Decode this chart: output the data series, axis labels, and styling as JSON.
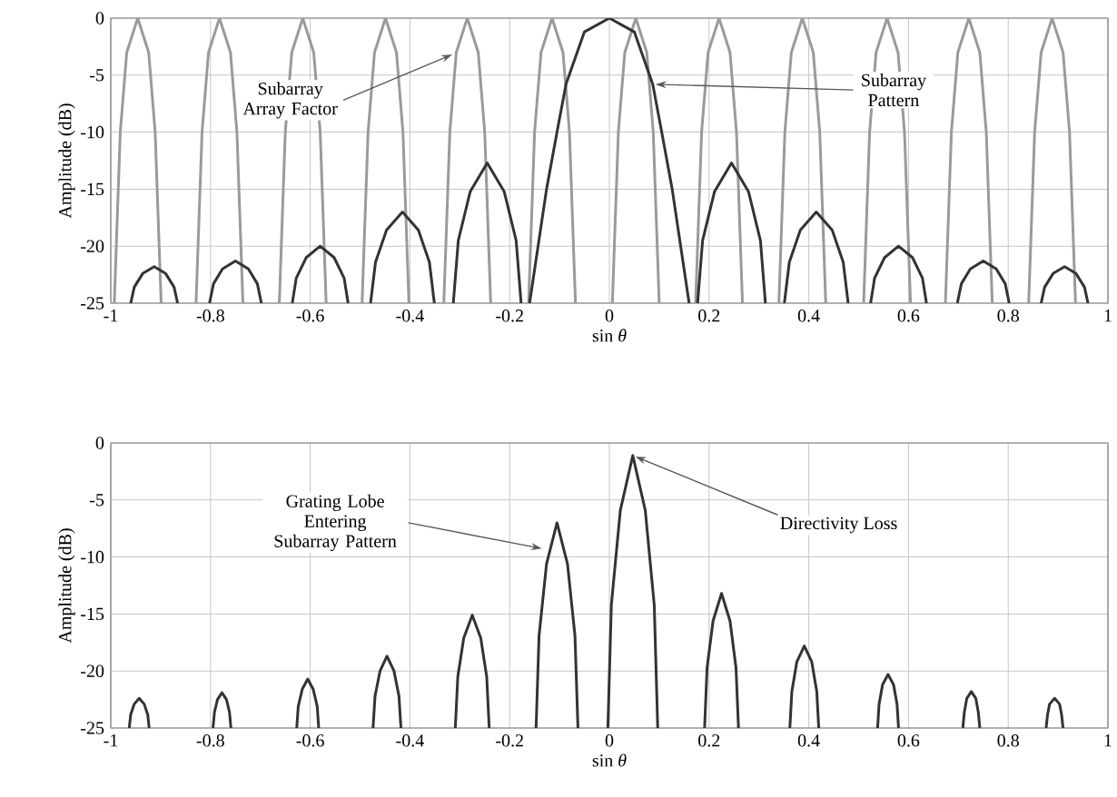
{
  "chart_data": [
    {
      "type": "line",
      "xlabel": "sin *θ*",
      "ylabel": "Amplitude (dB)",
      "xlim": [
        -1,
        1
      ],
      "ylim": [
        -25,
        0
      ],
      "xticks": [
        -1,
        -0.8,
        -0.6,
        -0.4,
        -0.2,
        0,
        0.2,
        0.4,
        0.6,
        0.8,
        1
      ],
      "yticks": [
        -25,
        -20,
        -15,
        -10,
        -5,
        0
      ],
      "grid": true,
      "marker": "none",
      "line_style": "solid",
      "series": [
        {
          "color": "#9a9a9a",
          "x": [
            -0.993,
            -0.981,
            -0.968,
            -0.946,
            -0.924,
            -0.911,
            -0.899,
            null,
            -0.829,
            -0.817,
            -0.804,
            -0.782,
            -0.76,
            -0.747,
            -0.735,
            null,
            -0.662,
            -0.65,
            -0.637,
            -0.615,
            -0.593,
            -0.58,
            -0.568,
            null,
            -0.496,
            -0.484,
            -0.471,
            -0.449,
            -0.427,
            -0.414,
            -0.402,
            null,
            -0.332,
            -0.32,
            -0.307,
            -0.285,
            -0.263,
            -0.25,
            -0.238,
            null,
            -0.162,
            -0.15,
            -0.137,
            -0.115,
            -0.093,
            -0.08,
            -0.068,
            null,
            0.006,
            0.018,
            0.031,
            0.053,
            0.075,
            0.088,
            0.1,
            null,
            0.173,
            0.185,
            0.198,
            0.22,
            0.242,
            0.255,
            0.267,
            null,
            0.34,
            0.352,
            0.365,
            0.387,
            0.409,
            0.422,
            0.434,
            null,
            0.51,
            0.522,
            0.535,
            0.557,
            0.579,
            0.592,
            0.604,
            null,
            0.674,
            0.686,
            0.699,
            0.721,
            0.743,
            0.756,
            0.768,
            null,
            0.841,
            0.853,
            0.866,
            0.888,
            0.91,
            0.923,
            0.935
          ],
          "values": [
            -25,
            -10,
            -3,
            0,
            -3,
            -10,
            -25,
            null,
            -25,
            -10,
            -3,
            0,
            -3,
            -10,
            -25,
            null,
            -25,
            -10,
            -3,
            0,
            -3,
            -10,
            -25,
            null,
            -25,
            -10,
            -3,
            0,
            -3,
            -10,
            -25,
            null,
            -25,
            -10,
            -3,
            0,
            -3,
            -10,
            -25,
            null,
            -25,
            -10,
            -3,
            0,
            -3,
            -10,
            -25,
            null,
            -25,
            -10,
            -3,
            0,
            -3,
            -10,
            -25,
            null,
            -25,
            -10,
            -3,
            0,
            -3,
            -10,
            -25,
            null,
            -25,
            -10,
            -3,
            0,
            -3,
            -10,
            -25,
            null,
            -25,
            -10,
            -3,
            0,
            -3,
            -10,
            -25,
            null,
            -25,
            -10,
            -3,
            0,
            -3,
            -10,
            -25,
            null,
            -25,
            -10,
            -3,
            0,
            -3,
            -10,
            -25
          ]
        },
        {
          "color": "#333333",
          "x": [
            -0.96,
            -0.953,
            -0.936,
            -0.913,
            -0.89,
            -0.873,
            -0.866,
            null,
            -0.802,
            -0.794,
            -0.776,
            -0.75,
            -0.724,
            -0.706,
            -0.698,
            null,
            -0.636,
            -0.628,
            -0.608,
            -0.58,
            -0.552,
            -0.532,
            -0.524,
            null,
            -0.479,
            -0.469,
            -0.447,
            -0.415,
            -0.383,
            -0.361,
            -0.351,
            null,
            -0.313,
            -0.303,
            -0.279,
            -0.245,
            -0.211,
            -0.187,
            -0.177,
            null,
            -0.16,
            -0.126,
            -0.105,
            -0.087,
            -0.05,
            0,
            0.05,
            0.087,
            0.105,
            0.126,
            0.16,
            null,
            0.177,
            0.187,
            0.211,
            0.245,
            0.279,
            0.303,
            0.313,
            null,
            0.351,
            0.361,
            0.383,
            0.415,
            0.447,
            0.469,
            0.479,
            null,
            0.524,
            0.532,
            0.552,
            0.58,
            0.608,
            0.628,
            0.636,
            null,
            0.698,
            0.706,
            0.724,
            0.75,
            0.776,
            0.794,
            0.802,
            null,
            0.866,
            0.873,
            0.89,
            0.913,
            0.936,
            0.953,
            0.96
          ],
          "values": [
            -25,
            -23.6,
            -22.4,
            -21.8,
            -22.4,
            -23.6,
            -25,
            null,
            -25,
            -23.3,
            -22,
            -21.3,
            -22,
            -23.3,
            -25,
            null,
            -25,
            -22.8,
            -21,
            -20,
            -21,
            -22.8,
            -25,
            null,
            -25,
            -21.4,
            -18.6,
            -17,
            -18.6,
            -21.4,
            -25,
            null,
            -25,
            -19.5,
            -15.2,
            -12.7,
            -15.2,
            -19.5,
            -25,
            null,
            -25,
            -15,
            -10,
            -5.8,
            -1.2,
            0,
            -1.2,
            -5.8,
            -10,
            -15,
            -25,
            null,
            -25,
            -19.5,
            -15.2,
            -12.7,
            -15.2,
            -19.5,
            -25,
            null,
            -25,
            -21.4,
            -18.6,
            -17,
            -18.6,
            -21.4,
            -25,
            null,
            -25,
            -22.8,
            -21,
            -20,
            -21,
            -22.8,
            -25,
            null,
            -25,
            -23.3,
            -22,
            -21.3,
            -22,
            -23.3,
            -25,
            null,
            -25,
            -23.6,
            -22.4,
            -21.8,
            -22.4,
            -23.6,
            -25
          ]
        }
      ],
      "annotations": [
        {
          "text": "Subarray Array Factor",
          "x": -0.31,
          "y": -3.1
        },
        {
          "text": "Subarray Pattern",
          "x": 0.087,
          "y": -5.8
        }
      ]
    },
    {
      "type": "line",
      "xlabel": "sin *θ*",
      "ylabel": "Amplitude (dB)",
      "xlim": [
        -1,
        1
      ],
      "ylim": [
        -25,
        0
      ],
      "xticks": [
        -1,
        -0.8,
        -0.6,
        -0.4,
        -0.2,
        0,
        0.2,
        0.4,
        0.6,
        0.8,
        1
      ],
      "yticks": [
        -25,
        -20,
        -15,
        -10,
        -5,
        0
      ],
      "grid": true,
      "marker": "none",
      "line_style": "solid",
      "series": [
        {
          "color": "#333333",
          "x": [
            -0.963,
            -0.96,
            -0.953,
            -0.943,
            -0.933,
            -0.926,
            -0.923,
            null,
            -0.795,
            -0.792,
            -0.786,
            -0.777,
            -0.768,
            -0.762,
            -0.759,
            null,
            -0.627,
            -0.624,
            -0.616,
            -0.605,
            -0.594,
            -0.586,
            -0.583,
            null,
            -0.474,
            -0.47,
            -0.46,
            -0.446,
            -0.432,
            -0.422,
            -0.418,
            null,
            -0.309,
            -0.304,
            -0.292,
            -0.275,
            -0.258,
            -0.246,
            -0.241,
            null,
            -0.147,
            -0.141,
            -0.126,
            -0.105,
            -0.084,
            -0.069,
            -0.063,
            null,
            -0.003,
            0.004,
            0.022,
            0.047,
            0.072,
            0.09,
            0.097,
            null,
            0.191,
            0.196,
            0.208,
            0.225,
            0.242,
            0.254,
            0.259,
            null,
            0.362,
            0.366,
            0.376,
            0.391,
            0.406,
            0.416,
            0.42,
            null,
            0.538,
            0.541,
            0.548,
            0.559,
            0.57,
            0.577,
            0.58,
            null,
            0.709,
            0.712,
            0.717,
            0.726,
            0.735,
            0.74,
            0.743,
            null,
            0.876,
            0.879,
            0.883,
            0.893,
            0.903,
            0.907,
            0.91
          ],
          "values": [
            -25,
            -23.8,
            -22.9,
            -22.4,
            -22.9,
            -23.8,
            -25,
            null,
            -25,
            -23.6,
            -22.5,
            -21.9,
            -22.5,
            -23.6,
            -25,
            null,
            -25,
            -23.1,
            -21.6,
            -20.7,
            -21.6,
            -23.1,
            -25,
            null,
            -25,
            -22.2,
            -20,
            -18.7,
            -20,
            -22.2,
            -25,
            null,
            -25,
            -20.5,
            -17.1,
            -15.1,
            -17.1,
            -20.5,
            -25,
            null,
            -25,
            -16.9,
            -10.6,
            -7,
            -10.6,
            -16.9,
            -25,
            null,
            -25,
            -14.2,
            -5.9,
            -1.1,
            -5.9,
            -14.2,
            -25,
            null,
            -25,
            -19.7,
            -15.6,
            -13.2,
            -15.6,
            -19.7,
            -25,
            null,
            -25,
            -21.8,
            -19.2,
            -17.8,
            -19.2,
            -21.8,
            -25,
            null,
            -25,
            -22.9,
            -21.2,
            -20.3,
            -21.2,
            -22.9,
            -25,
            null,
            -25,
            -23.6,
            -22.4,
            -21.8,
            -22.4,
            -23.6,
            -25,
            null,
            -25,
            -23.8,
            -22.9,
            -22.4,
            -22.9,
            -23.8,
            -25
          ]
        }
      ],
      "annotations": [
        {
          "text": "Grating Lobe Entering Subarray Pattern",
          "x": -0.13,
          "y": -9.3
        },
        {
          "text": "Directivity Loss",
          "x": 0.047,
          "y": -1.1
        }
      ]
    }
  ]
}
